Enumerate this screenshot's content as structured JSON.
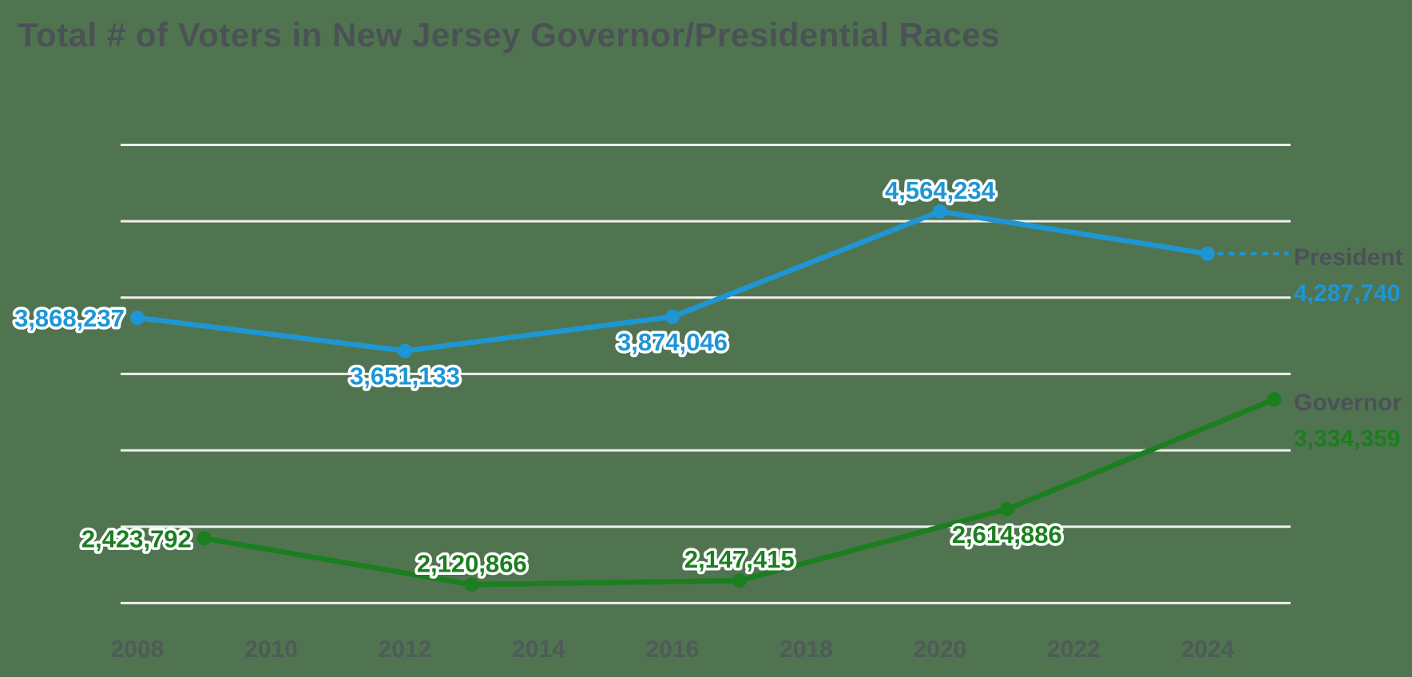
{
  "title": "Total # of Voters in New Jersey Governor/Presidential Races",
  "colors": {
    "background": "#507450",
    "gridline": "#efefec",
    "title_text": "#4b5256",
    "axis_label_text": "#4e565c",
    "series_name_text": "#4b5156",
    "president_blue": "#1e96d4",
    "governor_green": "#1b7e1f",
    "label_halo": "#ffffff"
  },
  "chart_data": {
    "type": "line",
    "title": "Total # of Voters in New Jersey Governor/Presidential Races",
    "grid": "horizontal-only",
    "legend_position": "right-end",
    "x_axis": {
      "tick_labels": [
        "2008",
        "2010",
        "2012",
        "2014",
        "2016",
        "2018",
        "2020",
        "2022",
        "2024"
      ],
      "tick_years": [
        2008,
        2010,
        2012,
        2014,
        2016,
        2018,
        2020,
        2022,
        2024
      ],
      "range": [
        2008,
        2025
      ]
    },
    "y_axis": {
      "range": [
        2000000,
        5000000
      ],
      "gridline_step": 500000,
      "gridline_values": [
        5000000,
        4500000,
        4000000,
        3500000,
        3000000,
        2500000,
        2000000
      ],
      "tick_labels_visible": false
    },
    "series": [
      {
        "id": "president",
        "name": "President",
        "color": "#1e96d4",
        "x": [
          2008,
          2012,
          2016,
          2020,
          2024
        ],
        "values": [
          3868237,
          3651133,
          3874046,
          4564234,
          4287740
        ],
        "point_labels": [
          "3,868,237",
          "3,651,133",
          "3,874,046",
          "4,564,234",
          ""
        ],
        "end_label": {
          "name": "President",
          "value_label": "4,287,740"
        }
      },
      {
        "id": "governor",
        "name": "Governor",
        "color": "#1b7e1f",
        "x": [
          2009,
          2013,
          2017,
          2021,
          2025
        ],
        "values": [
          2423792,
          2120866,
          2147415,
          2614886,
          3334359
        ],
        "point_labels": [
          "2,423,792",
          "2,120,866",
          "2,147,415",
          "2,614,886",
          ""
        ],
        "end_label": {
          "name": "Governor",
          "value_label": "3,334,359"
        }
      }
    ]
  }
}
